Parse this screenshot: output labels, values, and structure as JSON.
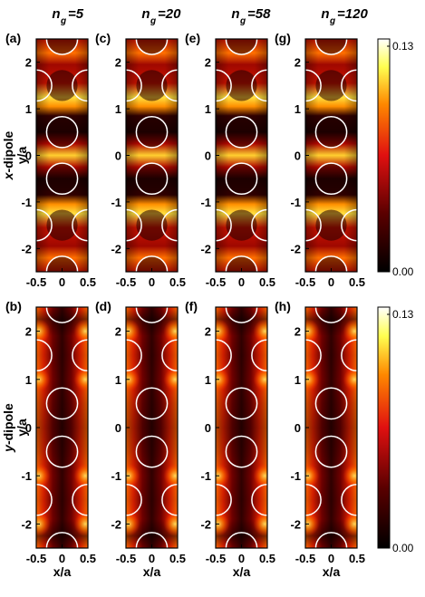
{
  "figure": {
    "columns": [
      {
        "sub": "g",
        "value": "=5"
      },
      {
        "sub": "g",
        "value": "=20"
      },
      {
        "sub": "g",
        "value": "=58"
      },
      {
        "sub": "g",
        "value": "=120"
      }
    ],
    "column_prefix": "n",
    "rows": [
      {
        "dipole_prefix": "x",
        "dipole_suffix": "-dipole",
        "panels": [
          "(a)",
          "(c)",
          "(e)",
          "(g)"
        ]
      },
      {
        "dipole_prefix": "y",
        "dipole_suffix": "-dipole",
        "panels": [
          "(b)",
          "(d)",
          "(f)",
          "(h)"
        ]
      }
    ],
    "ylabel": "y/a",
    "xlabel": "x/a",
    "colors": {
      "low": "#000000",
      "mid": "#e01010",
      "high": "#ffff60",
      "max": "#ffffff"
    }
  },
  "chart_data": {
    "type": "heatmap",
    "x_ticks": [
      "-0.5",
      "0",
      "0.5"
    ],
    "y_ticks": [
      "2",
      "1",
      "0",
      "-1",
      "-2"
    ],
    "xlim": [
      -0.5,
      0.5
    ],
    "ylim": [
      -2.5,
      2.5
    ],
    "colorbar": {
      "min": "0.00",
      "max": "0.13"
    },
    "hole_centers_y": [
      -2.5,
      -1.5,
      -0.5,
      0.5,
      1.5,
      2.5
    ],
    "hole_centers_x": [
      [
        0,
        -0.5,
        0.5
      ],
      [
        0,
        -0.5,
        0.5
      ]
    ]
  }
}
